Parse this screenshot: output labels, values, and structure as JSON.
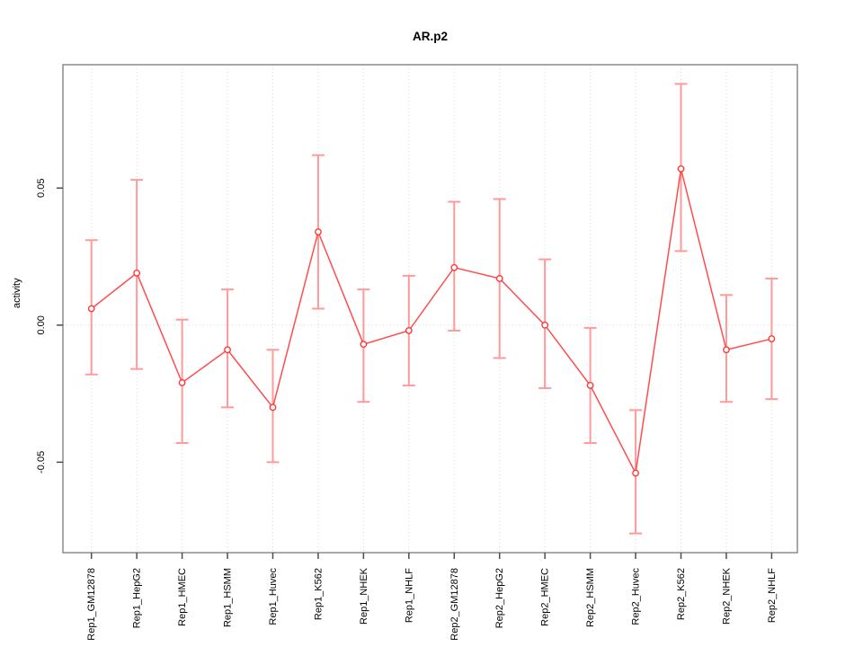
{
  "title": "AR.p2",
  "colors": {
    "series_line": "#ff4d4d",
    "marker_stroke": "#ff3838",
    "error_bar": "#ff9a9a",
    "grid": "#d8d8d8",
    "axis_box": "#8c8c8c",
    "tick": "#4d4d4d",
    "text": "#000000",
    "background": "#ffffff"
  },
  "chart_data": {
    "type": "line",
    "title": "AR.p2",
    "xlabel": "",
    "ylabel": "activity",
    "ylim": [
      -0.083,
      0.095
    ],
    "yticks": [
      0.05,
      0.0,
      -0.05
    ],
    "ytick_labels": [
      "0.05",
      "0.00",
      "-0.05"
    ],
    "grid": {
      "vertical": "dotted line at each category",
      "horizontal": "dotted line at y=0 only"
    },
    "legend": "none",
    "marker": "open-circle",
    "error_bars": true,
    "categories": [
      "Rep1_GM12878",
      "Rep1_HepG2",
      "Rep1_HMEC",
      "Rep1_HSMM",
      "Rep1_Huvec",
      "Rep1_K562",
      "Rep1_NHEK",
      "Rep1_NHLF",
      "Rep2_GM12878",
      "Rep2_HepG2",
      "Rep2_HMEC",
      "Rep2_HSMM",
      "Rep2_Huvec",
      "Rep2_K562",
      "Rep2_NHEK",
      "Rep2_NHLF"
    ],
    "series": [
      {
        "name": "activity",
        "values": [
          0.006,
          0.019,
          -0.021,
          -0.009,
          -0.03,
          0.034,
          -0.007,
          -0.002,
          0.021,
          0.017,
          0.0,
          -0.022,
          -0.054,
          0.057,
          -0.009,
          -0.005
        ]
      }
    ],
    "error_low": [
      -0.018,
      -0.016,
      -0.043,
      -0.03,
      -0.05,
      0.006,
      -0.028,
      -0.022,
      -0.002,
      -0.012,
      -0.023,
      -0.043,
      -0.076,
      0.027,
      -0.028,
      -0.027
    ],
    "error_high": [
      0.031,
      0.053,
      0.002,
      0.013,
      -0.009,
      0.062,
      0.013,
      0.018,
      0.045,
      0.046,
      0.024,
      -0.001,
      -0.031,
      0.088,
      0.011,
      0.017
    ]
  }
}
